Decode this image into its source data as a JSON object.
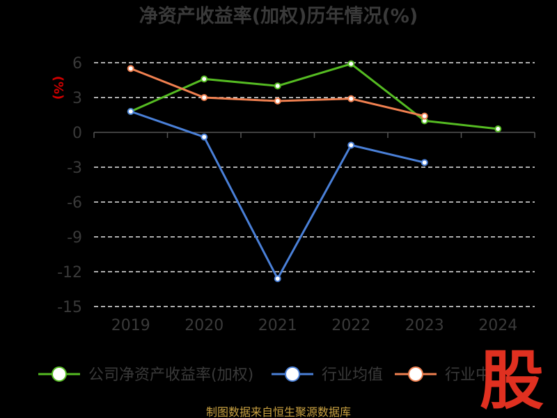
{
  "chart_data": {
    "type": "line",
    "title": "净资产收益率(加权)历年情况(%)",
    "ylabel": "(%)",
    "categories": [
      "2019",
      "2020",
      "2021",
      "2022",
      "2023",
      "2024"
    ],
    "y_ticks": [
      "6",
      "3",
      "0",
      "-3",
      "-6",
      "-9",
      "-12",
      "-15"
    ],
    "ylim": [
      -15,
      6
    ],
    "grid": true,
    "legend_placement": "bottom",
    "series": [
      {
        "name": "公司净资产收益率(加权)",
        "color": "#55bb22",
        "values": [
          1.8,
          4.6,
          4.0,
          5.9,
          1.0,
          0.3
        ]
      },
      {
        "name": "行业均值",
        "color": "#4a80d8",
        "values": [
          1.8,
          -0.4,
          -12.6,
          -1.1,
          -2.6,
          null
        ]
      },
      {
        "name": "行业中",
        "color": "#f08050",
        "values": [
          5.5,
          3.0,
          2.7,
          2.9,
          1.4,
          null
        ]
      }
    ]
  },
  "source_text": "制图数据来自恒生聚源数据库",
  "watermark_text": "股"
}
